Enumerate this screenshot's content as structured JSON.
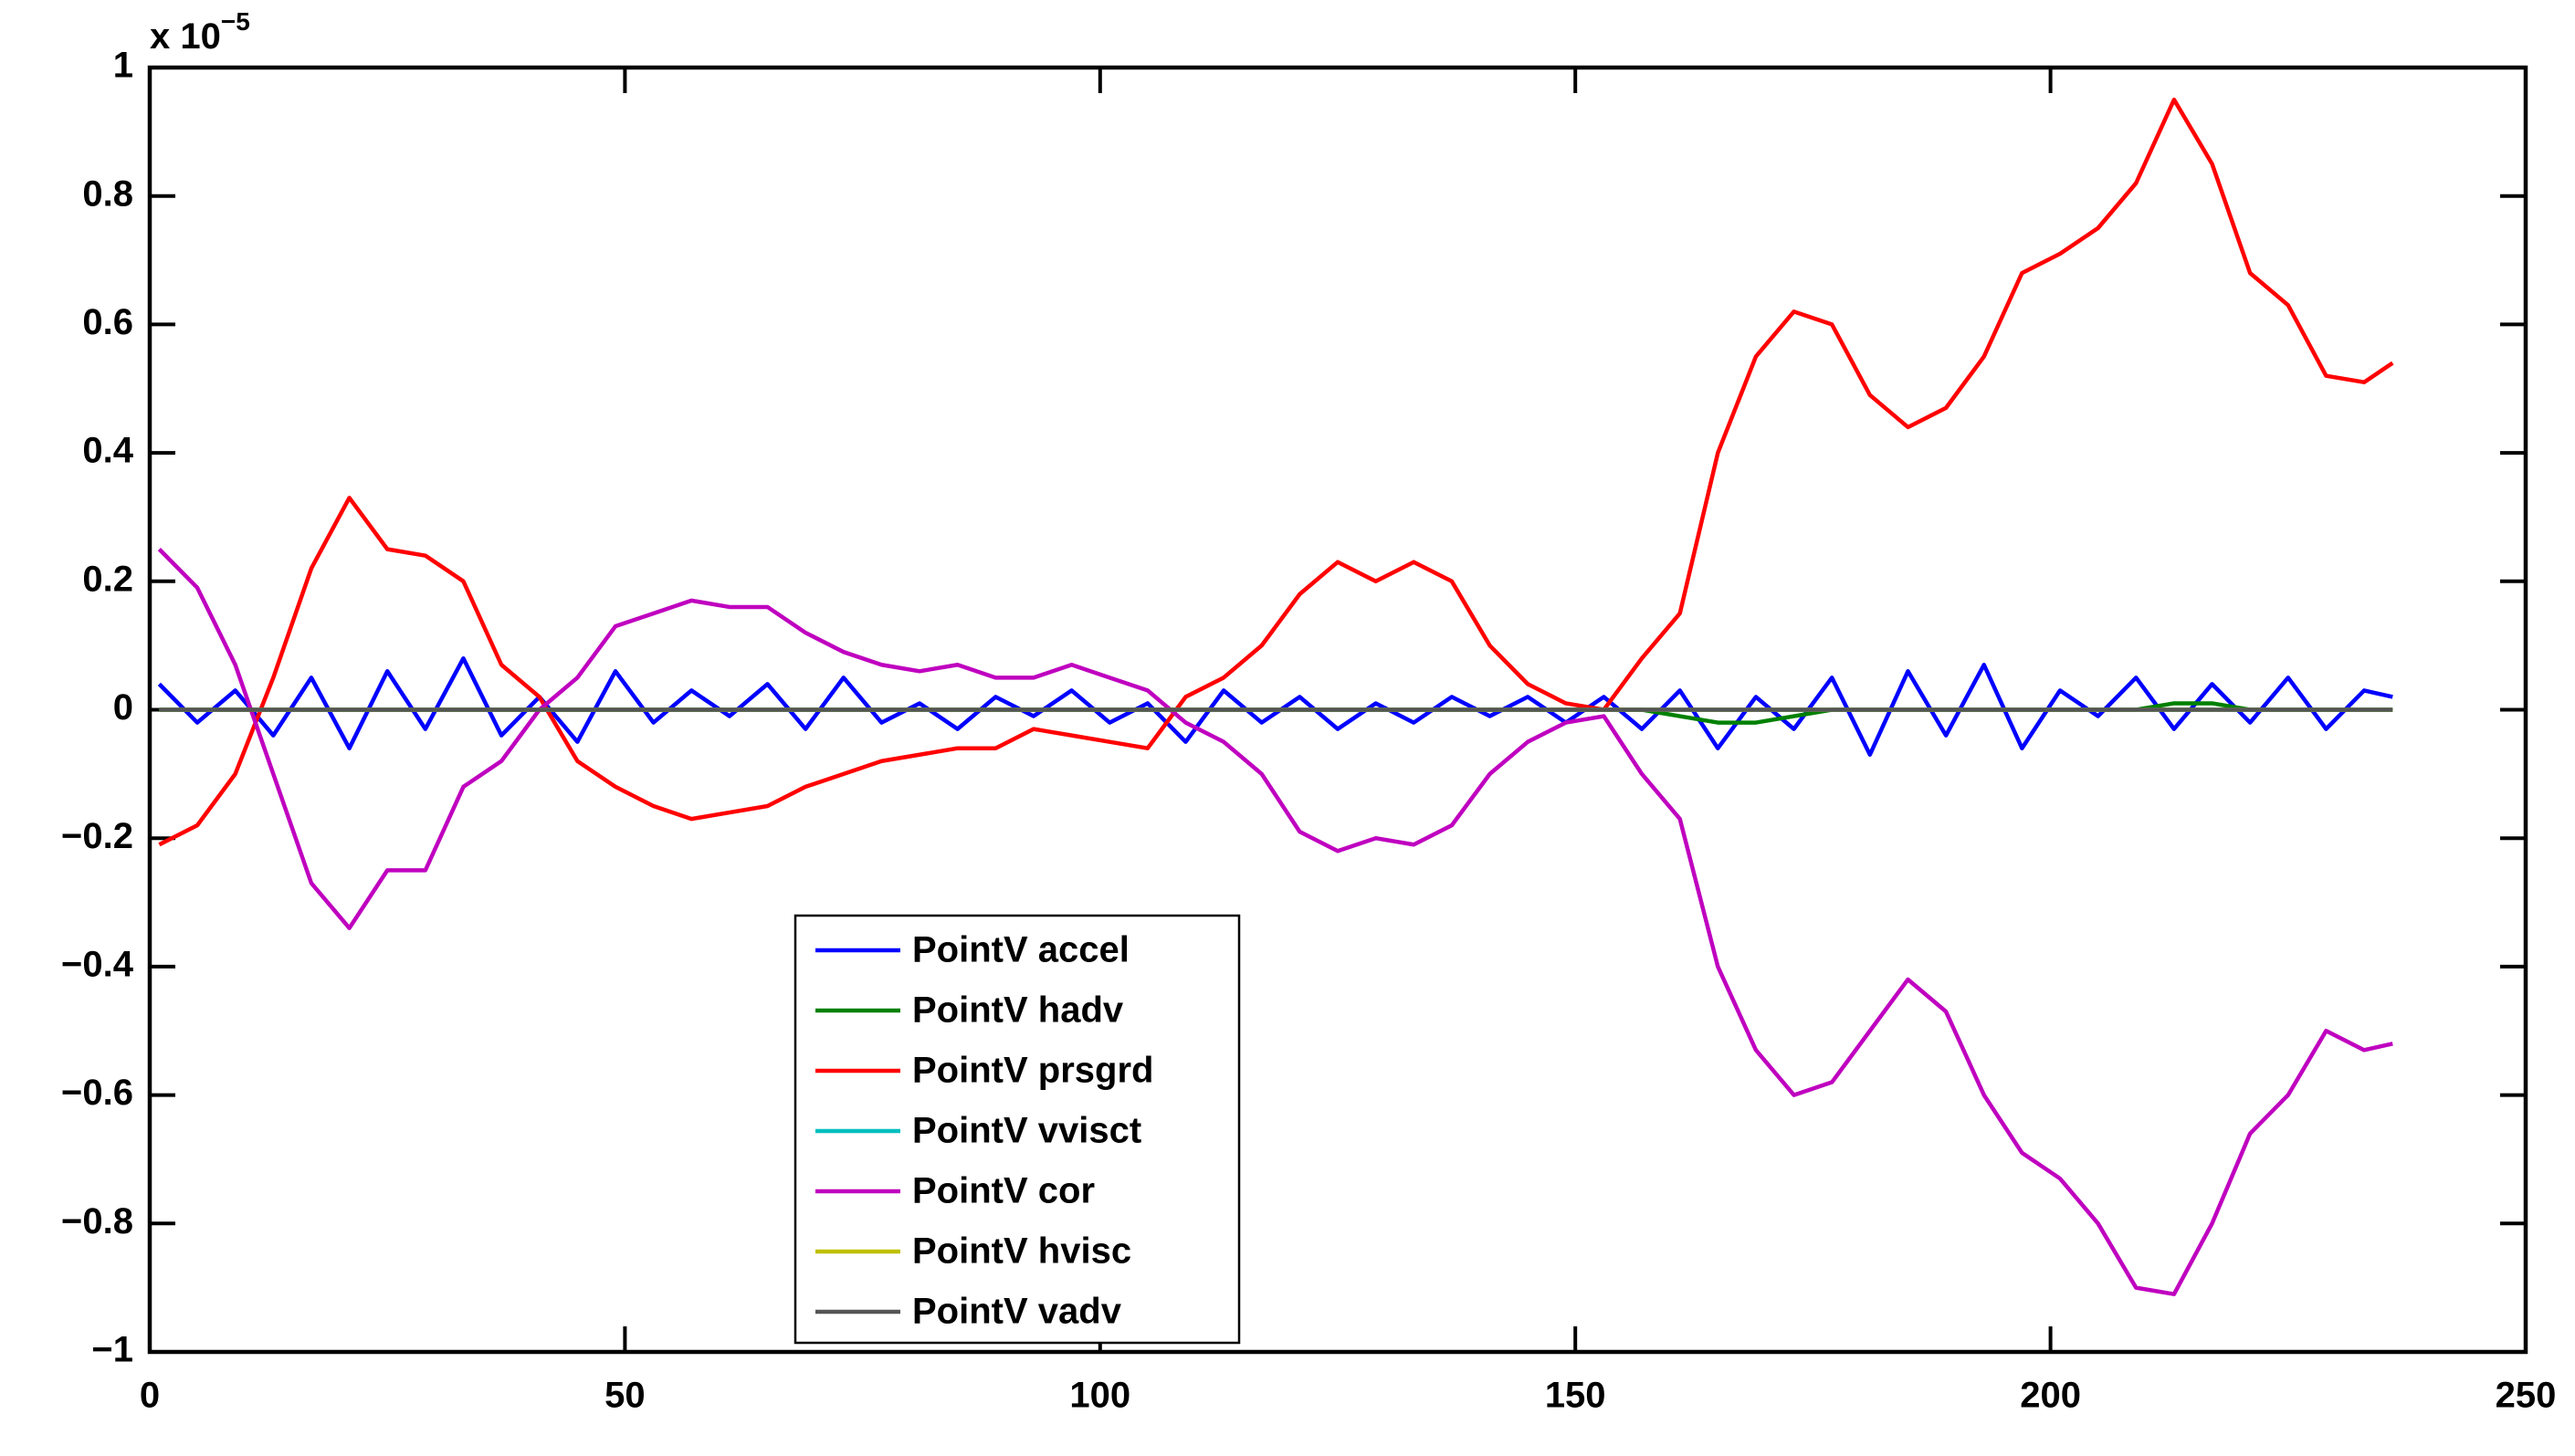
{
  "chart_data": {
    "type": "line",
    "y_multiplier": {
      "base": "x 10",
      "exponent": "−5"
    },
    "x": [
      1,
      5,
      9,
      13,
      17,
      21,
      25,
      29,
      33,
      37,
      41,
      45,
      49,
      53,
      57,
      61,
      65,
      69,
      73,
      77,
      81,
      85,
      89,
      93,
      97,
      101,
      105,
      109,
      113,
      117,
      121,
      125,
      129,
      133,
      137,
      141,
      145,
      149,
      153,
      157,
      161,
      165,
      169,
      173,
      177,
      181,
      185,
      189,
      193,
      197,
      201,
      205,
      209,
      213,
      217,
      221,
      225,
      229,
      233,
      236
    ],
    "series": [
      {
        "name": "PointV accel",
        "color": "#0000ff",
        "values": [
          0.04,
          -0.02,
          0.03,
          -0.04,
          0.05,
          -0.06,
          0.06,
          -0.03,
          0.08,
          -0.04,
          0.02,
          -0.05,
          0.06,
          -0.02,
          0.03,
          -0.01,
          0.04,
          -0.03,
          0.05,
          -0.02,
          0.01,
          -0.03,
          0.02,
          -0.01,
          0.03,
          -0.02,
          0.01,
          -0.05,
          0.03,
          -0.02,
          0.02,
          -0.03,
          0.01,
          -0.02,
          0.02,
          -0.01,
          0.02,
          -0.02,
          0.02,
          -0.03,
          0.03,
          -0.06,
          0.02,
          -0.03,
          0.05,
          -0.07,
          0.06,
          -0.04,
          0.07,
          -0.06,
          0.03,
          -0.01,
          0.05,
          -0.03,
          0.04,
          -0.02,
          0.05,
          -0.03,
          0.03,
          0.02
        ]
      },
      {
        "name": "PointV hadv",
        "color": "#008000",
        "values": [
          0,
          0,
          0,
          0,
          0,
          0,
          0,
          0,
          0,
          0,
          0,
          0,
          0,
          0,
          0,
          0,
          0,
          0,
          0,
          0,
          0,
          0,
          0,
          0,
          0,
          0,
          0,
          0,
          0,
          0,
          0,
          0,
          0,
          0,
          0,
          0,
          0,
          0,
          0,
          0,
          -0.01,
          -0.02,
          -0.02,
          -0.01,
          0,
          0,
          0,
          0,
          0,
          0,
          0,
          0,
          0,
          0.01,
          0.01,
          0,
          0,
          0,
          0,
          0
        ]
      },
      {
        "name": "PointV prsgrd",
        "color": "#ff0000",
        "values": [
          -0.21,
          -0.18,
          -0.1,
          0.05,
          0.22,
          0.33,
          0.25,
          0.24,
          0.2,
          0.07,
          0.02,
          -0.08,
          -0.12,
          -0.15,
          -0.17,
          -0.16,
          -0.15,
          -0.12,
          -0.1,
          -0.08,
          -0.07,
          -0.06,
          -0.06,
          -0.03,
          -0.04,
          -0.05,
          -0.06,
          0.02,
          0.05,
          0.1,
          0.18,
          0.23,
          0.2,
          0.23,
          0.2,
          0.1,
          0.04,
          0.01,
          0.0,
          0.08,
          0.15,
          0.4,
          0.55,
          0.62,
          0.6,
          0.49,
          0.44,
          0.47,
          0.55,
          0.68,
          0.71,
          0.75,
          0.82,
          0.95,
          0.85,
          0.68,
          0.63,
          0.52,
          0.51,
          0.54
        ]
      },
      {
        "name": "PointV vvisct",
        "color": "#00bfbf",
        "values": [
          0,
          0,
          0,
          0,
          0,
          0,
          0,
          0,
          0,
          0,
          0,
          0,
          0,
          0,
          0,
          0,
          0,
          0,
          0,
          0,
          0,
          0,
          0,
          0,
          0,
          0,
          0,
          0,
          0,
          0,
          0,
          0,
          0,
          0,
          0,
          0,
          0,
          0,
          0,
          0,
          0,
          0,
          0,
          0,
          0,
          0,
          0,
          0,
          0,
          0,
          0,
          0,
          0,
          0,
          0,
          0,
          0,
          0,
          0,
          0
        ]
      },
      {
        "name": "PointV cor",
        "color": "#bf00bf",
        "values": [
          0.25,
          0.19,
          0.07,
          -0.1,
          -0.27,
          -0.34,
          -0.25,
          -0.25,
          -0.12,
          -0.08,
          0.0,
          0.05,
          0.13,
          0.15,
          0.17,
          0.16,
          0.16,
          0.12,
          0.09,
          0.07,
          0.06,
          0.07,
          0.05,
          0.05,
          0.07,
          0.05,
          0.03,
          -0.02,
          -0.05,
          -0.1,
          -0.19,
          -0.22,
          -0.2,
          -0.21,
          -0.18,
          -0.1,
          -0.05,
          -0.02,
          -0.01,
          -0.1,
          -0.17,
          -0.4,
          -0.53,
          -0.6,
          -0.58,
          -0.5,
          -0.42,
          -0.47,
          -0.6,
          -0.69,
          -0.73,
          -0.8,
          -0.9,
          -0.91,
          -0.8,
          -0.66,
          -0.6,
          -0.5,
          -0.53,
          -0.52
        ]
      },
      {
        "name": "PointV hvisc",
        "color": "#bfbf00",
        "values": [
          0,
          0,
          0,
          0,
          0,
          0,
          0,
          0,
          0,
          0,
          0,
          0,
          0,
          0,
          0,
          0,
          0,
          0,
          0,
          0,
          0,
          0,
          0,
          0,
          0,
          0,
          0,
          0,
          0,
          0,
          0,
          0,
          0,
          0,
          0,
          0,
          0,
          0,
          0,
          0,
          0,
          0,
          0,
          0,
          0,
          0,
          0,
          0,
          0,
          0,
          0,
          0,
          0,
          0,
          0,
          0,
          0,
          0,
          0,
          0
        ]
      },
      {
        "name": "PointV vadv",
        "color": "#555555",
        "values": [
          0,
          0,
          0,
          0,
          0,
          0,
          0,
          0,
          0,
          0,
          0,
          0,
          0,
          0,
          0,
          0,
          0,
          0,
          0,
          0,
          0,
          0,
          0,
          0,
          0,
          0,
          0,
          0,
          0,
          0,
          0,
          0,
          0,
          0,
          0,
          0,
          0,
          0,
          0,
          0,
          0,
          0,
          0,
          0,
          0,
          0,
          0,
          0,
          0,
          0,
          0,
          0,
          0,
          0,
          0,
          0,
          0,
          0,
          0,
          0
        ]
      }
    ],
    "xlim": [
      0,
      250
    ],
    "xticks": [
      0,
      50,
      100,
      150,
      200,
      250
    ],
    "ylim": [
      -1,
      1
    ],
    "yticks": [
      {
        "value": -1,
        "label": "−1"
      },
      {
        "value": -0.8,
        "label": "−0.8"
      },
      {
        "value": -0.6,
        "label": "−0.6"
      },
      {
        "value": -0.4,
        "label": "−0.4"
      },
      {
        "value": -0.2,
        "label": "−0.2"
      },
      0,
      0.2,
      0.4,
      0.6,
      0.8,
      1
    ],
    "grid": false
  }
}
